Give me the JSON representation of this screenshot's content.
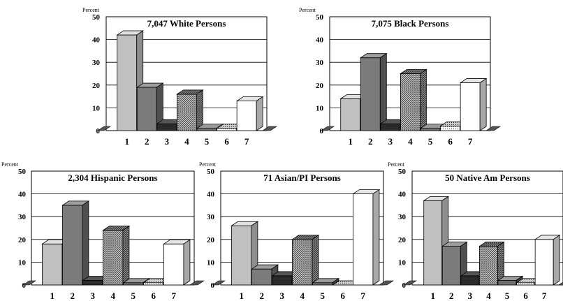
{
  "chart_data": [
    {
      "type": "bar",
      "title": "7,047 White Persons",
      "ylabel": "Percent",
      "categories": [
        "1",
        "2",
        "3",
        "4",
        "5",
        "6",
        "7"
      ],
      "values": [
        42,
        19,
        3,
        16,
        1,
        1,
        13
      ],
      "ylim": [
        0,
        50
      ],
      "yticks": [
        "0",
        "10",
        "20",
        "30",
        "40",
        "50"
      ]
    },
    {
      "type": "bar",
      "title": "7,075 Black Persons",
      "ylabel": "Percent",
      "categories": [
        "1",
        "2",
        "3",
        "4",
        "5",
        "6",
        "7"
      ],
      "values": [
        14,
        32,
        3,
        25,
        1,
        2,
        21
      ],
      "ylim": [
        0,
        50
      ],
      "yticks": [
        "0",
        "10",
        "20",
        "30",
        "40",
        "50"
      ]
    },
    {
      "type": "bar",
      "title": "2,304 Hispanic Persons",
      "ylabel": "Percent",
      "categories": [
        "1",
        "2",
        "3",
        "4",
        "5",
        "6",
        "7"
      ],
      "values": [
        18,
        35,
        2,
        24,
        1,
        1,
        18
      ],
      "ylim": [
        0,
        50
      ],
      "yticks": [
        "0",
        "10",
        "20",
        "30",
        "40",
        "50"
      ]
    },
    {
      "type": "bar",
      "title": "71 Asian/PI Persons",
      "ylabel": "Percent",
      "categories": [
        "1",
        "2",
        "3",
        "4",
        "5",
        "6",
        "7"
      ],
      "values": [
        26,
        7,
        4,
        20,
        1,
        0,
        40
      ],
      "ylim": [
        0,
        50
      ],
      "yticks": [
        "0",
        "10",
        "20",
        "30",
        "40",
        "50"
      ]
    },
    {
      "type": "bar",
      "title": "50 Native Am Persons",
      "ylabel": "Percent",
      "categories": [
        "1",
        "2",
        "3",
        "4",
        "5",
        "6",
        "7"
      ],
      "values": [
        37,
        17,
        4,
        17,
        2,
        1,
        20
      ],
      "ylim": [
        0,
        50
      ],
      "yticks": [
        "0",
        "10",
        "20",
        "30",
        "40",
        "50"
      ]
    }
  ],
  "style": {
    "bar_colors": [
      "#c0c0c0",
      "#808080",
      "#2a2a2a",
      "pattern-crosshatch",
      "#808080",
      "pattern-dots",
      "#ffffff"
    ]
  }
}
